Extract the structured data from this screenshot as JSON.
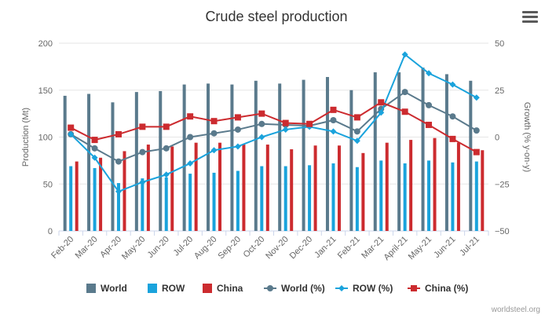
{
  "chart_data": {
    "type": "bar",
    "title": "Crude steel production",
    "ylabel": "Production (Mt)",
    "y2label": "Growth (% y-on-y)",
    "ylim": [
      0,
      200
    ],
    "y2lim": [
      -50,
      50
    ],
    "yticks": [
      "0",
      "50",
      "100",
      "150",
      "200"
    ],
    "y2ticks": [
      "−50",
      "−25",
      "0",
      "25",
      "50"
    ],
    "grid": true,
    "legend_position": "bottom",
    "categories": [
      "Feb-20",
      "Mar-20",
      "Apr-20",
      "May-20",
      "Jun-20",
      "Jul-20",
      "Aug-20",
      "Sep-20",
      "Oct-20",
      "Nov-20",
      "Dec-20",
      "Jan-21",
      "Feb-21",
      "Mar-21",
      "April-21",
      "May-21",
      "Jun-21",
      "Jul-21"
    ],
    "series": [
      {
        "name": "World",
        "kind": "bar",
        "axis": "left",
        "color": "#5a7a8c",
        "values": [
          144,
          146,
          137,
          148,
          149,
          156,
          157,
          156,
          160,
          157,
          161,
          164,
          150,
          169,
          169,
          174,
          167,
          160
        ]
      },
      {
        "name": "ROW",
        "kind": "bar",
        "axis": "left",
        "color": "#1aa3dc",
        "values": [
          69,
          67,
          51,
          56,
          57,
          61,
          62,
          64,
          69,
          69,
          70,
          72,
          68,
          75,
          72,
          75,
          73,
          74
        ]
      },
      {
        "name": "China",
        "kind": "bar",
        "axis": "left",
        "color": "#cc2b2f",
        "values": [
          74,
          78,
          85,
          92,
          90,
          94,
          94,
          92,
          92,
          87,
          91,
          91,
          83,
          94,
          97,
          99,
          94,
          86
        ]
      },
      {
        "name": "World (%)",
        "kind": "line",
        "axis": "right",
        "color": "#5a7a8c",
        "marker": "circle",
        "values": [
          1.5,
          -6,
          -13,
          -8,
          -6,
          0,
          2,
          4,
          7,
          6.5,
          6,
          9,
          3,
          15,
          24,
          17,
          11,
          3.5
        ]
      },
      {
        "name": "ROW (%)",
        "kind": "line",
        "axis": "right",
        "color": "#1aa3dc",
        "marker": "diamond",
        "values": [
          1.5,
          -11,
          -29,
          -24,
          -20,
          -14,
          -7,
          -5,
          0,
          4,
          5.5,
          3,
          -2,
          13,
          44,
          34,
          28,
          21
        ]
      },
      {
        "name": "China (%)",
        "kind": "line",
        "axis": "right",
        "color": "#cc2b2f",
        "marker": "square",
        "values": [
          5,
          -1.5,
          1.5,
          5.5,
          5.5,
          11,
          8.5,
          10.5,
          12.5,
          7.5,
          7,
          14.5,
          10.5,
          18.5,
          13.5,
          6.5,
          -1,
          -8
        ]
      }
    ]
  },
  "credit": "worldsteel.org",
  "menu_icon": "hamburger-menu-icon"
}
